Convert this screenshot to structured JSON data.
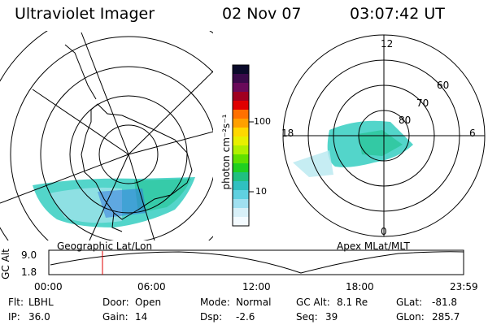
{
  "header": {
    "instrument": "Ultraviolet Imager",
    "date": "02 Nov 07",
    "time": "03:07:42 UT"
  },
  "colors": {
    "background": "#ffffff",
    "image_main": "#3fd0c0",
    "marker": "#e00000"
  },
  "geo_panel": {
    "label": "Geographic Lat/Lon"
  },
  "apex_panel": {
    "label": "Apex MLat/MLT",
    "mlt_labels": [
      "12",
      "18",
      "6",
      "0"
    ],
    "lat_labels": [
      "60",
      "70",
      "80"
    ]
  },
  "colorbar": {
    "label": "photon cm⁻²s⁻¹",
    "ticks": [
      "100",
      "10"
    ],
    "colors": [
      "#0a0a2a",
      "#3a0a4a",
      "#6a0a5a",
      "#a00020",
      "#e00000",
      "#ff7000",
      "#ffa000",
      "#ffd800",
      "#e8f000",
      "#b0f000",
      "#60e000",
      "#20d020",
      "#20c080",
      "#30c0c0",
      "#60d0e0",
      "#a0e0f0",
      "#d8f0f8",
      "#f4fbff"
    ]
  },
  "altitude_plot": {
    "ylabel": "GC Alt",
    "y_ticks": [
      "9.0",
      "1.8"
    ],
    "x_ticks": [
      "00:00",
      "06:00",
      "12:00",
      "18:00",
      "23:59"
    ]
  },
  "status": {
    "row1": [
      {
        "key": "filter",
        "label": "Flt:",
        "value": "LBHL"
      },
      {
        "key": "door",
        "label": "Door:",
        "value": "Open"
      },
      {
        "key": "mode",
        "label": "Mode:",
        "value": "Normal"
      },
      {
        "key": "gc_alt",
        "label": "GC Alt:",
        "value": "8.1 Re"
      },
      {
        "key": "glat",
        "label": "GLat:",
        "value": "-81.8"
      }
    ],
    "row2": [
      {
        "key": "ip",
        "label": "IP:",
        "value": "36.0"
      },
      {
        "key": "gain",
        "label": "Gain:",
        "value": "14"
      },
      {
        "key": "dsp",
        "label": "Dsp:",
        "value": "-2.6"
      },
      {
        "key": "seq",
        "label": "Seq:",
        "value": "39"
      },
      {
        "key": "glon",
        "label": "GLon:",
        "value": "285.7"
      }
    ]
  }
}
